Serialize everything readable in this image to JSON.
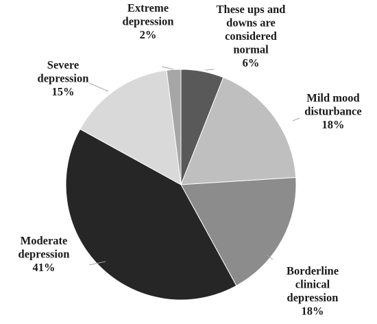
{
  "chart_data": {
    "type": "pie",
    "title": "",
    "slices": [
      {
        "name_lines": [
          "These ups and",
          "downs are",
          "considered",
          "normal"
        ],
        "value": 6,
        "label": "6%",
        "color": "#595959"
      },
      {
        "name_lines": [
          "Mild mood",
          "disturbance"
        ],
        "value": 18,
        "label": "18%",
        "color": "#bfbfbf"
      },
      {
        "name_lines": [
          "Borderline",
          "clinical",
          "depression"
        ],
        "value": 18,
        "label": "18%",
        "color": "#8c8c8c"
      },
      {
        "name_lines": [
          "Moderate",
          "depression"
        ],
        "value": 41,
        "label": "41%",
        "color": "#262626"
      },
      {
        "name_lines": [
          "Severe",
          "depression"
        ],
        "value": 15,
        "label": "15%",
        "color": "#d9d9d9"
      },
      {
        "name_lines": [
          "Extreme",
          "depression"
        ],
        "value": 2,
        "label": "2%",
        "color": "#a6a6a6"
      }
    ],
    "start_angle_deg": 0,
    "direction": "clockwise",
    "legend": "none",
    "labels": "outside-with-leaders"
  }
}
